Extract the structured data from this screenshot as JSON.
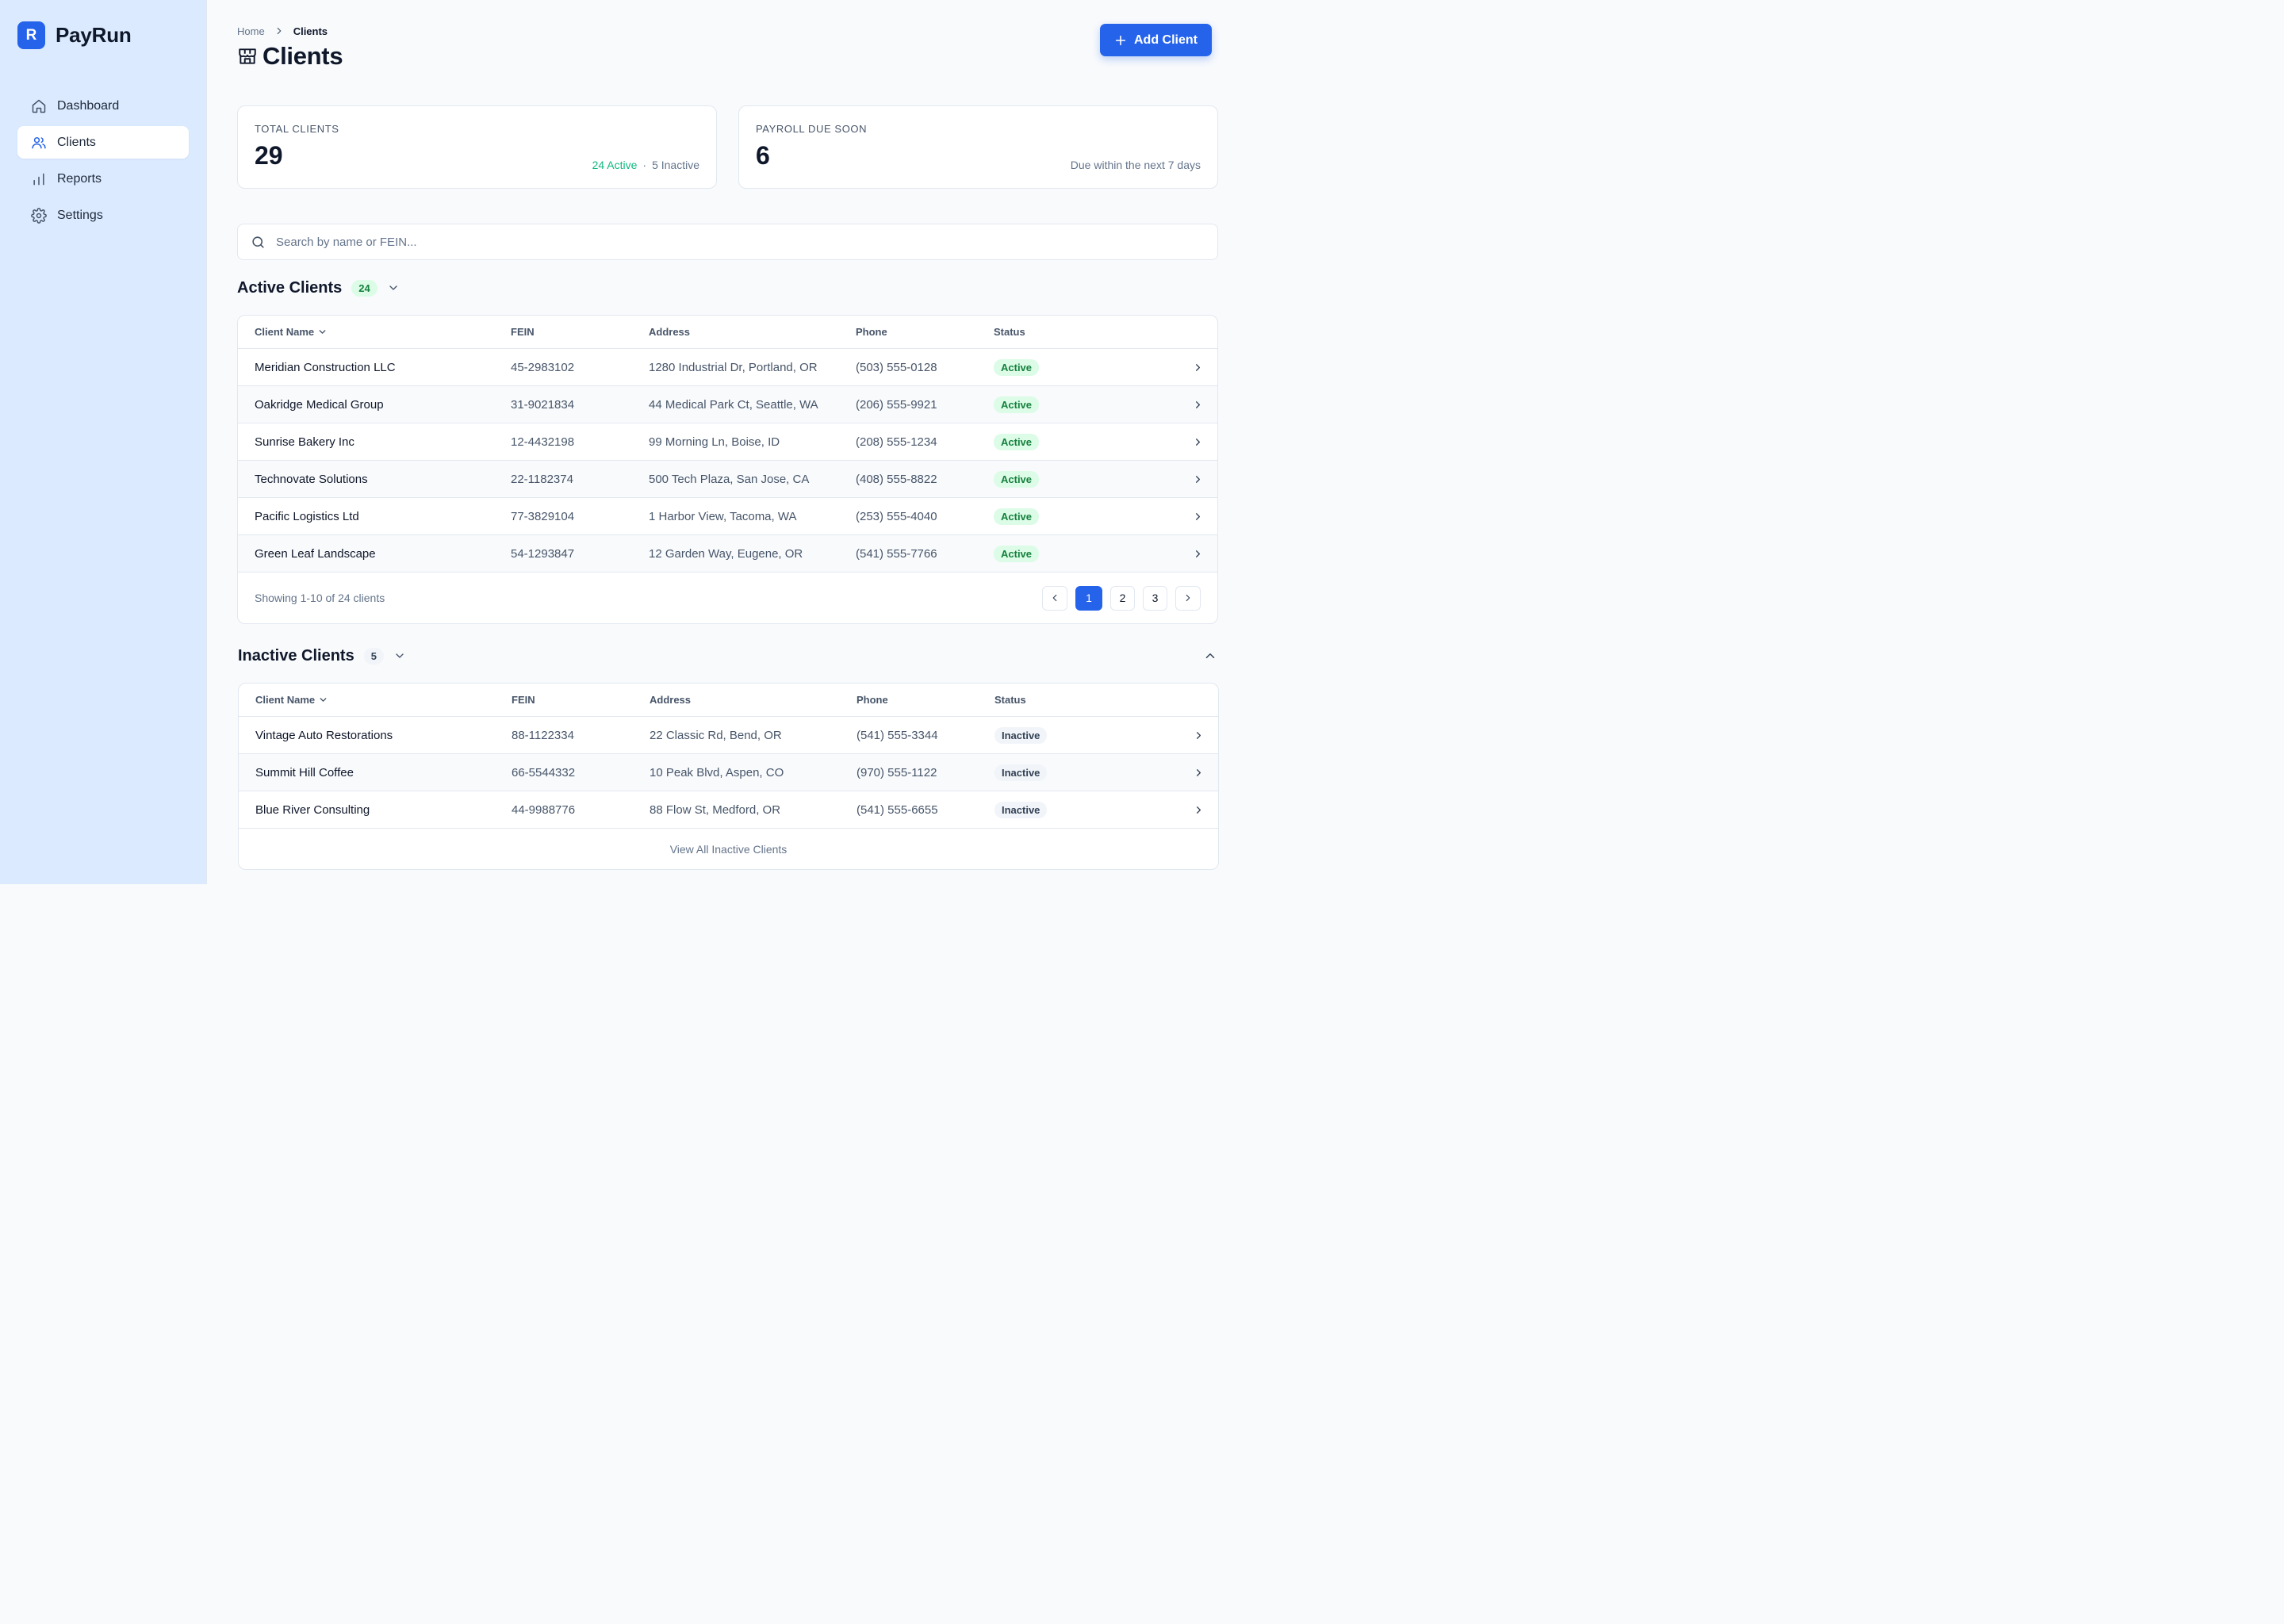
{
  "brand": {
    "initial": "R",
    "name": "PayRun"
  },
  "sidebar": {
    "items": [
      {
        "label": "Dashboard",
        "icon": "home-icon",
        "active": false
      },
      {
        "label": "Clients",
        "icon": "users-icon",
        "active": true
      },
      {
        "label": "Reports",
        "icon": "bar-chart-icon",
        "active": false
      },
      {
        "label": "Settings",
        "icon": "gear-icon",
        "active": false
      }
    ]
  },
  "breadcrumb": {
    "home": "Home",
    "current": "Clients"
  },
  "page": {
    "title": "Clients",
    "title_icon": "storefront-icon"
  },
  "actions": {
    "add_client": "Add Client"
  },
  "stats": {
    "total": {
      "label": "TOTAL CLIENTS",
      "value": "29",
      "active": "24 Active",
      "dot": "·",
      "inactive": "5 Inactive"
    },
    "payroll": {
      "label": "PAYROLL DUE SOON",
      "value": "6",
      "meta": "Due within the next 7 days"
    }
  },
  "search": {
    "placeholder": "Search by name or FEIN..."
  },
  "columns": {
    "name": "Client Name",
    "fein": "FEIN",
    "address": "Address",
    "phone": "Phone",
    "status": "Status"
  },
  "active_section": {
    "title": "Active Clients",
    "count": "24",
    "rows": [
      {
        "name": "Meridian Construction LLC",
        "fein": "45-2983102",
        "address": "1280 Industrial Dr, Portland, OR",
        "phone": "(503) 555-0128",
        "status": "Active"
      },
      {
        "name": "Oakridge Medical Group",
        "fein": "31-9021834",
        "address": "44 Medical Park Ct, Seattle, WA",
        "phone": "(206) 555-9921",
        "status": "Active"
      },
      {
        "name": "Sunrise Bakery Inc",
        "fein": "12-4432198",
        "address": "99 Morning Ln, Boise, ID",
        "phone": "(208) 555-1234",
        "status": "Active"
      },
      {
        "name": "Technovate Solutions",
        "fein": "22-1182374",
        "address": "500 Tech Plaza, San Jose, CA",
        "phone": "(408) 555-8822",
        "status": "Active"
      },
      {
        "name": "Pacific Logistics Ltd",
        "fein": "77-3829104",
        "address": "1 Harbor View, Tacoma, WA",
        "phone": "(253) 555-4040",
        "status": "Active"
      },
      {
        "name": "Green Leaf Landscape",
        "fein": "54-1293847",
        "address": "12 Garden Way, Eugene, OR",
        "phone": "(541) 555-7766",
        "status": "Active"
      }
    ],
    "footer": "Showing 1-10 of 24 clients",
    "pages": [
      "1",
      "2",
      "3"
    ],
    "current_page": "1"
  },
  "inactive_section": {
    "title": "Inactive Clients",
    "count": "5",
    "rows": [
      {
        "name": "Vintage Auto Restorations",
        "fein": "88-1122334",
        "address": "22 Classic Rd, Bend, OR",
        "phone": "(541) 555-3344",
        "status": "Inactive"
      },
      {
        "name": "Summit Hill Coffee",
        "fein": "66-5544332",
        "address": "10 Peak Blvd, Aspen, CO",
        "phone": "(970) 555-1122",
        "status": "Inactive"
      },
      {
        "name": "Blue River Consulting",
        "fein": "44-9988776",
        "address": "88 Flow St, Medford, OR",
        "phone": "(541) 555-6655",
        "status": "Inactive"
      }
    ],
    "view_all": "View All Inactive Clients"
  },
  "colors": {
    "accent": "#2563eb",
    "sidebar_bg": "#dbeafe",
    "active_green": "#15803d"
  }
}
